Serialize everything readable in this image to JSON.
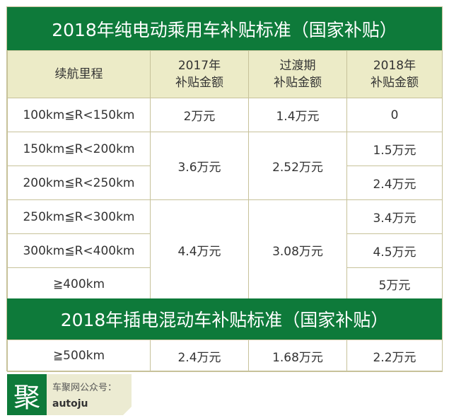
{
  "title_bev": "2018年纯电动乘用车补贴标准（国家补贴）",
  "header": {
    "range": "续航里程",
    "y2017_line1": "2017年",
    "y2017_line2": "补贴金额",
    "trans_line1": "过渡期",
    "trans_line2": "补贴金额",
    "y2018_line1": "2018年",
    "y2018_line2": "补贴金额"
  },
  "bev": {
    "rows": [
      {
        "range": "100km≦R<150km",
        "y2017": "2万元",
        "transition": "1.4万元",
        "y2018": "0"
      },
      {
        "range": "150km≦R<200km",
        "y2018": "1.5万元"
      },
      {
        "range": "200km≦R<250km",
        "y2018": "2.4万元"
      },
      {
        "range": "250km≦R<300km",
        "y2018": "3.4万元"
      },
      {
        "range": "300km≦R<400km",
        "y2018": "4.5万元"
      },
      {
        "range": "≧400km",
        "y2018": "5万元"
      }
    ],
    "group_150_250": {
      "y2017": "3.6万元",
      "transition": "2.52万元"
    },
    "group_250_up": {
      "y2017": "4.4万元",
      "transition": "3.08万元"
    }
  },
  "title_phev": "2018年插电混动车补贴标准（国家补贴）",
  "phev": {
    "range": "≧500km",
    "y2017": "2.4万元",
    "transition": "1.68万元",
    "y2018": "2.2万元"
  },
  "footer": {
    "logo_char": "聚",
    "account_label": "车聚网公众号：",
    "account_id": "autoju"
  },
  "colors": {
    "brand_green": "#0e7a3a",
    "header_bg": "#ecebc7",
    "border": "#c7c29a"
  }
}
